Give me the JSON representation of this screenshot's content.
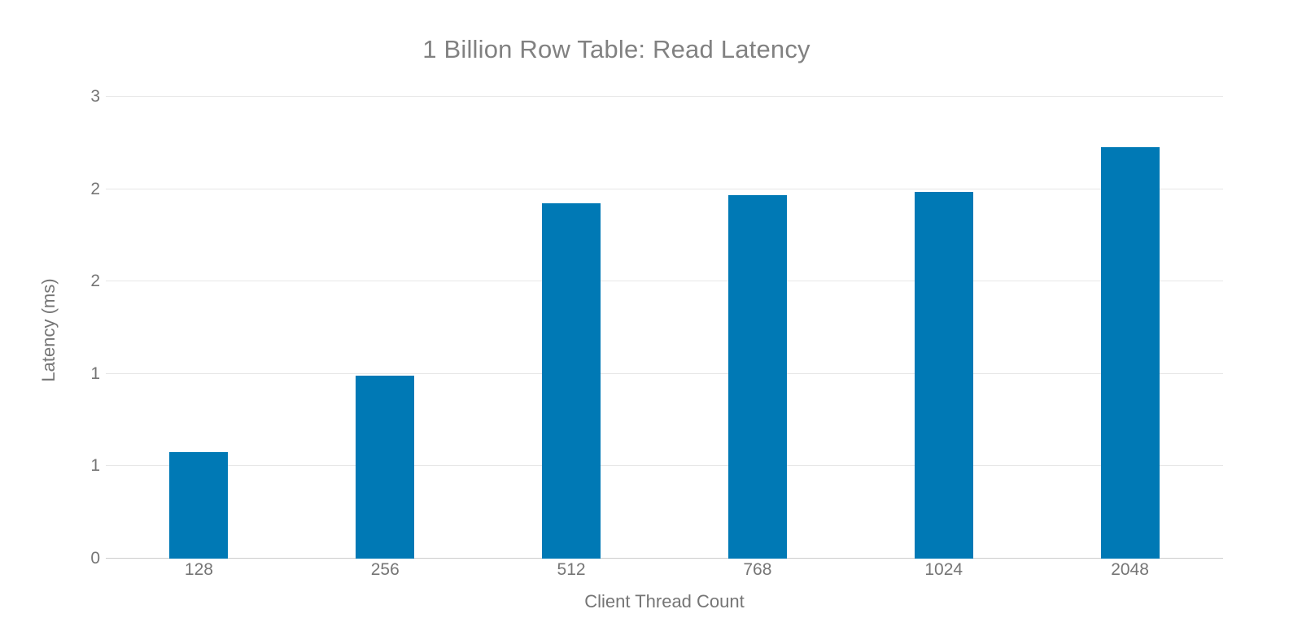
{
  "chart_data": {
    "type": "bar",
    "title": "1 Billion Row Table: Read Latency",
    "xlabel": "Client Thread Count",
    "ylabel": "Latency (ms)",
    "categories": [
      "128",
      "256",
      "512",
      "768",
      "1024",
      "2048"
    ],
    "values": [
      0.69,
      1.19,
      2.31,
      2.36,
      2.38,
      2.67
    ],
    "ylim": [
      0,
      3
    ],
    "ytick_values": [
      0,
      0.6,
      1.2,
      1.8,
      2.4,
      3
    ],
    "ytick_labels": [
      "0",
      "1",
      "1",
      "2",
      "2",
      "3"
    ],
    "grid": true,
    "legend": "none",
    "bar_color": "#0079b5",
    "gridline_color": "#e7e7e7",
    "axis_line_color": "#cccccc",
    "tick_label_color": "#757575",
    "title_color": "#818181"
  }
}
